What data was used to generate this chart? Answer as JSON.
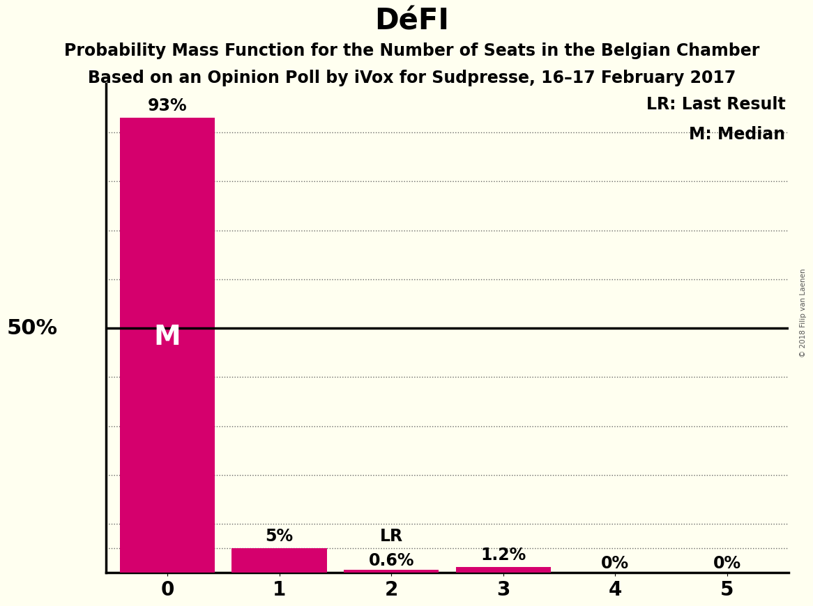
{
  "title": "DéFI",
  "subtitle1": "Probability Mass Function for the Number of Seats in the Belgian Chamber",
  "subtitle2": "Based on an Opinion Poll by iVox for Sudpresse, 16–17 February 2017",
  "categories": [
    0,
    1,
    2,
    3,
    4,
    5
  ],
  "values": [
    0.93,
    0.05,
    0.006,
    0.012,
    0.0,
    0.0
  ],
  "bar_color": "#D5006D",
  "background_color": "#FFFFF0",
  "fifty_pct_line_y": 0.5,
  "median_label": "M",
  "median_bar": 0,
  "lr_bar": 2,
  "lr_label": "LR",
  "bar_labels": [
    "93%",
    "5%",
    "0.6%",
    "1.2%",
    "0%",
    "0%"
  ],
  "label_50pct": "50%",
  "legend_lr": "LR: Last Result",
  "legend_m": "M: Median",
  "watermark": "© 2018 Filip van Laenen",
  "ylim": [
    0,
    1.0
  ],
  "dotted_y_positions": [
    0.9,
    0.8,
    0.7,
    0.6,
    0.4,
    0.3,
    0.2,
    0.1,
    0.05
  ],
  "dotted_line_color": "#666666",
  "solid_line_color": "#000000",
  "title_fontsize": 30,
  "subtitle_fontsize": 17,
  "bar_label_fontsize": 17,
  "axis_tick_fontsize": 20,
  "legend_fontsize": 17,
  "fifty_label_fontsize": 22,
  "median_fontsize": 28,
  "xlim": [
    -0.55,
    5.55
  ]
}
